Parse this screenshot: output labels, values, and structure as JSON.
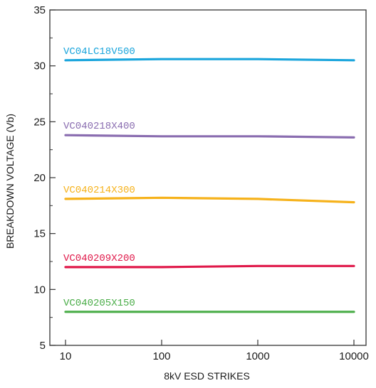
{
  "chart_data": {
    "type": "line",
    "xscale": "log",
    "xlim": [
      10,
      10000
    ],
    "ylim": [
      5,
      35
    ],
    "xlabel": "8kV ESD STRIKES",
    "ylabel": "BREAKDOWN VOLTAGE (Vb)",
    "x_ticks": [
      {
        "value": 10,
        "label": "10"
      },
      {
        "value": 100,
        "label": "100"
      },
      {
        "value": 1000,
        "label": "1000"
      },
      {
        "value": 10000,
        "label": "10000"
      }
    ],
    "y_ticks": [
      {
        "value": 5,
        "label": "5"
      },
      {
        "value": 10,
        "label": "10"
      },
      {
        "value": 15,
        "label": "15"
      },
      {
        "value": 20,
        "label": "20"
      },
      {
        "value": 25,
        "label": "25"
      },
      {
        "value": 30,
        "label": "30"
      },
      {
        "value": 35,
        "label": "35"
      }
    ],
    "grid": false,
    "series": [
      {
        "name": "VC04LC18V500",
        "color": "#1aa5dc",
        "points": [
          [
            10,
            30.5
          ],
          [
            100,
            30.6
          ],
          [
            1000,
            30.6
          ],
          [
            10000,
            30.5
          ]
        ]
      },
      {
        "name": "VC040218X400",
        "color": "#8a6db0",
        "points": [
          [
            10,
            23.8
          ],
          [
            100,
            23.7
          ],
          [
            1000,
            23.7
          ],
          [
            10000,
            23.6
          ]
        ]
      },
      {
        "name": "VC040214X300",
        "color": "#f6b21b",
        "points": [
          [
            10,
            18.1
          ],
          [
            100,
            18.2
          ],
          [
            1000,
            18.1
          ],
          [
            10000,
            17.8
          ]
        ]
      },
      {
        "name": "VC040209X200",
        "color": "#e0194a",
        "points": [
          [
            10,
            12.0
          ],
          [
            100,
            12.0
          ],
          [
            1000,
            12.1
          ],
          [
            10000,
            12.1
          ]
        ]
      },
      {
        "name": "VC040205X150",
        "color": "#4aad48",
        "points": [
          [
            10,
            8.0
          ],
          [
            100,
            8.0
          ],
          [
            1000,
            8.0
          ],
          [
            10000,
            8.0
          ]
        ]
      }
    ]
  }
}
